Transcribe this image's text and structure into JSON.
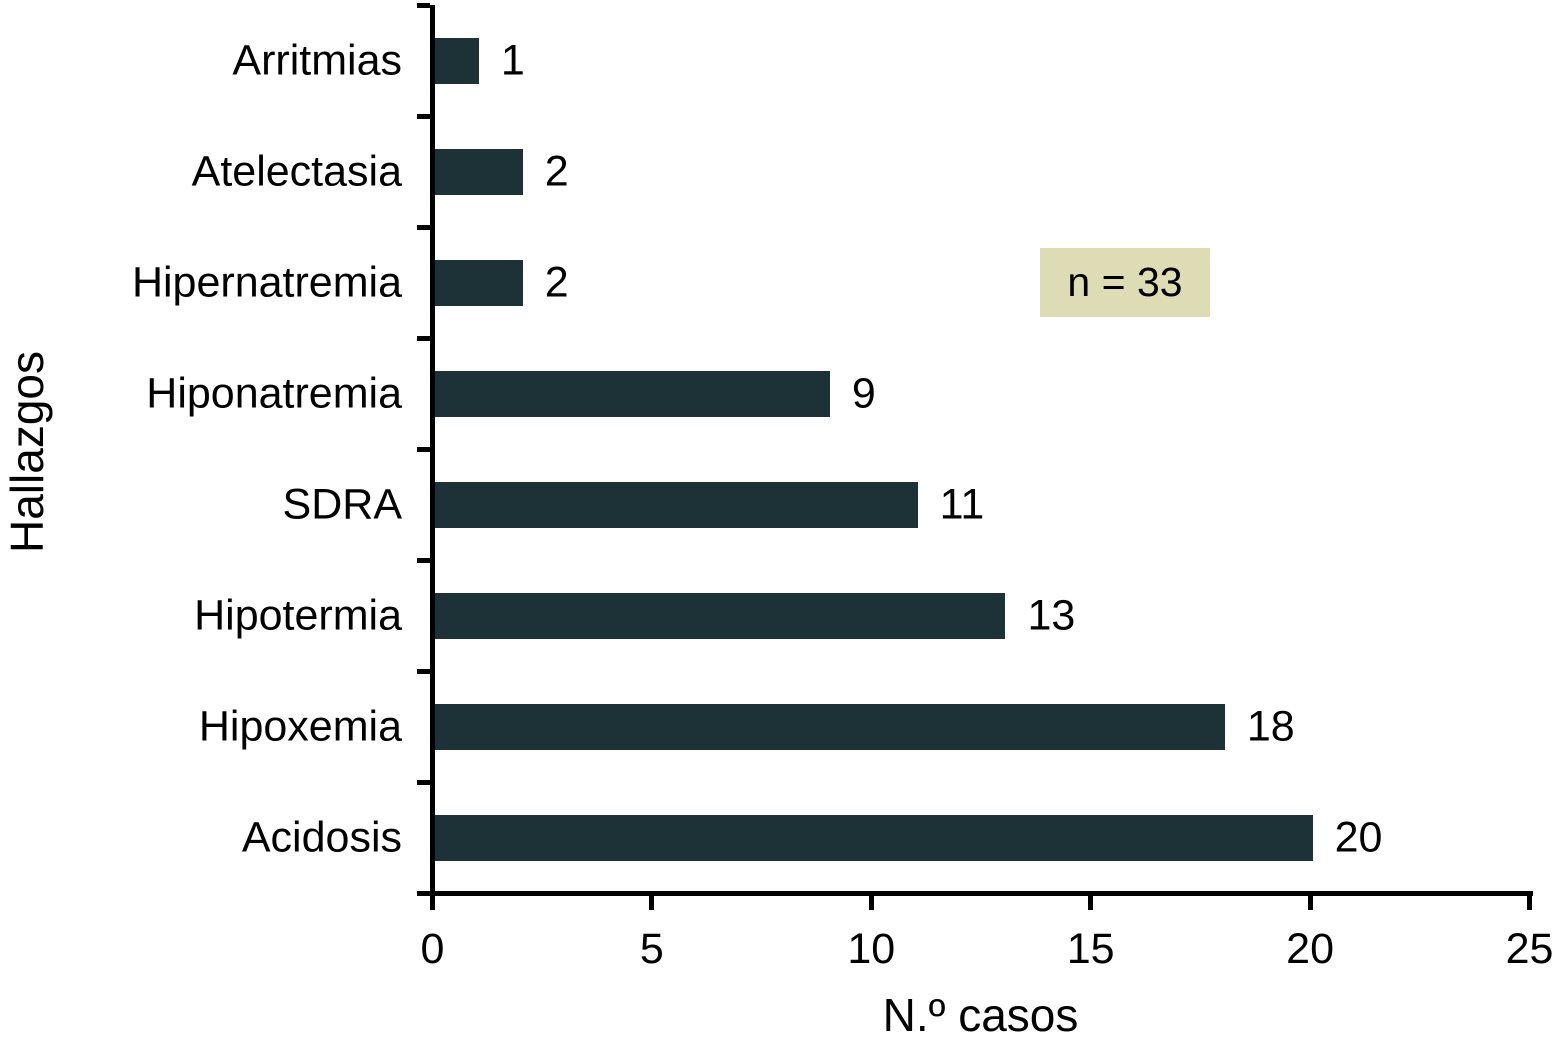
{
  "figure": {
    "background": "#ffffff",
    "text_color": "#000000"
  },
  "chart_data": {
    "type": "bar",
    "orientation": "horizontal",
    "title": "",
    "xlabel": "N.º casos",
    "ylabel": "Hallazgos",
    "categories": [
      "Arritmias",
      "Atelectasia",
      "Hipernatremia",
      "Hiponatremia",
      "SDRA",
      "Hipotermia",
      "Hipoxemia",
      "Acidosis"
    ],
    "values": [
      1,
      2,
      2,
      9,
      11,
      13,
      18,
      20
    ],
    "xlim": [
      0,
      25
    ],
    "xticks": [
      0,
      5,
      10,
      15,
      20,
      25
    ],
    "grid": false,
    "legend_position": "none",
    "value_labels_shown": true,
    "bar_color": "#1d3236",
    "axis_color": "#000000",
    "annotation": {
      "text": "n = 33",
      "bg_color": "#dddcb5"
    }
  }
}
